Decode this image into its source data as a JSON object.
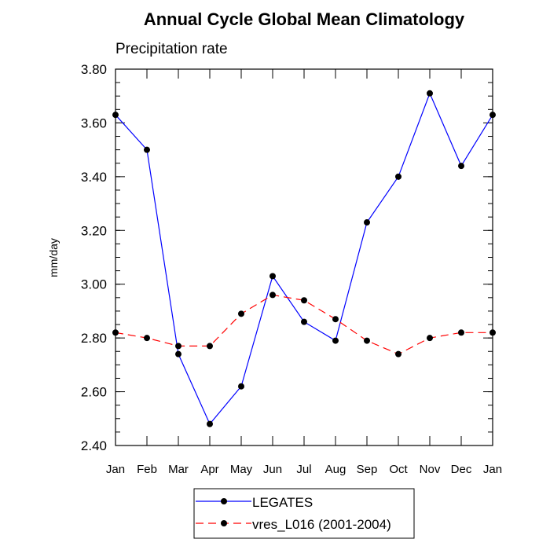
{
  "chart_data": {
    "type": "line",
    "title": "Annual Cycle Global Mean Climatology",
    "subtitle": "Precipitation rate",
    "xlabel": "",
    "ylabel": "mm/day",
    "categories": [
      "Jan",
      "Feb",
      "Mar",
      "Apr",
      "May",
      "Jun",
      "Jul",
      "Aug",
      "Sep",
      "Oct",
      "Nov",
      "Dec",
      "Jan"
    ],
    "ylim": [
      2.4,
      3.8
    ],
    "yticks": [
      "2.40",
      "2.60",
      "2.80",
      "3.00",
      "3.20",
      "3.40",
      "3.60",
      "3.80"
    ],
    "y_minor_step": 0.05,
    "grid": false,
    "legend_position": "bottom-center",
    "series": [
      {
        "name": "LEGATES",
        "color": "#0000ff",
        "dash": "solid",
        "marker": "filled-circle",
        "values": [
          3.63,
          3.5,
          2.74,
          2.48,
          2.62,
          3.03,
          2.86,
          2.79,
          3.23,
          3.4,
          3.71,
          3.44,
          3.63
        ]
      },
      {
        "name": "vres_L016 (2001-2004)",
        "color": "#ff0000",
        "dash": "dashed",
        "marker": "filled-circle",
        "values": [
          2.82,
          2.8,
          2.77,
          2.77,
          2.89,
          2.96,
          2.94,
          2.87,
          2.79,
          2.74,
          2.8,
          2.82,
          2.82
        ]
      }
    ]
  }
}
